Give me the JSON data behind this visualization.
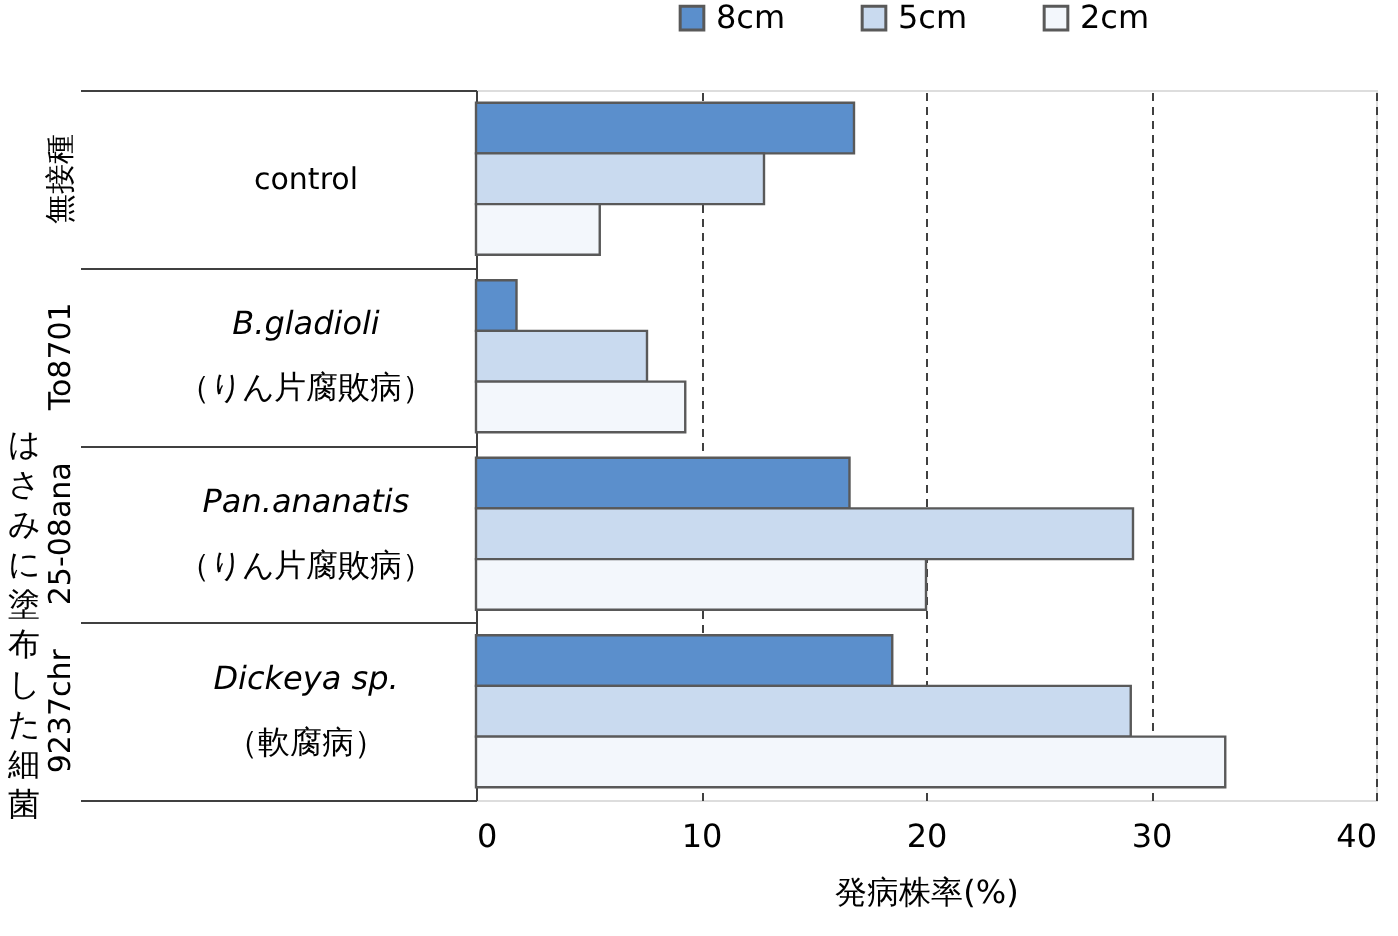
{
  "chart_data": {
    "type": "bar",
    "orientation": "horizontal",
    "xlabel": "発病株率(%)",
    "ylabel": "はさみに塗布した細菌",
    "categories": [
      "無接種\ncontrol",
      "To8701\nB.gladioli\n（りん片腐敗病）",
      "25-08ana\nPan.ananatis\n（りん片腐敗病）",
      "9237chr\nDickeya sp.\n（軟腐病）"
    ],
    "series": [
      {
        "name": "8cm",
        "color": "#5b8fcc",
        "values": [
          16.8,
          1.8,
          16.6,
          18.5
        ]
      },
      {
        "name": "5cm",
        "color": "#c9daef",
        "values": [
          12.8,
          7.6,
          29.2,
          29.1
        ]
      },
      {
        "name": "2cm",
        "color": "#f3f7fc",
        "values": [
          5.5,
          9.3,
          20.0,
          33.3
        ]
      }
    ],
    "xlim": [
      0,
      40
    ],
    "xticks": [
      0,
      10,
      20,
      30,
      40
    ],
    "grid": "x",
    "legend": "top"
  }
}
